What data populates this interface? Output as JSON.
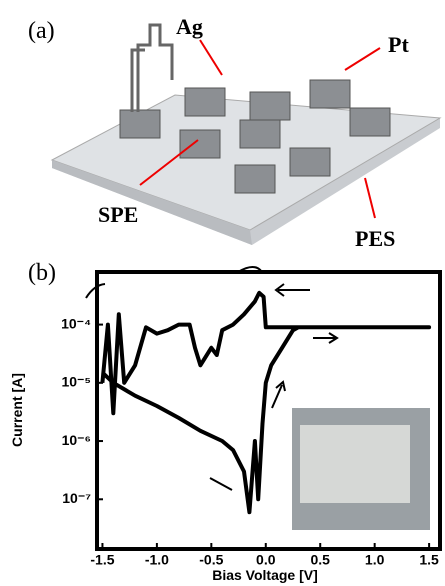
{
  "panel_a": {
    "label": "(a)",
    "annotations": [
      "Ag",
      "Pt",
      "SPE",
      "PES"
    ]
  },
  "chart_data": {
    "type": "line",
    "panel_label": "(b)",
    "x_label": "Bias Voltage [V]",
    "y_label": "Current [A]",
    "x": [
      -1.5,
      -1.4,
      -1.2,
      -1.0,
      -0.8,
      -0.6,
      -0.4,
      -0.3,
      -0.2,
      -0.15,
      -0.1,
      -0.07,
      -0.03,
      0.0,
      0.05,
      0.15,
      0.25,
      0.3,
      1.5,
      0.0,
      -0.02,
      -0.06,
      -0.1,
      -0.2,
      -0.3,
      -0.4,
      -0.45,
      -0.5,
      -0.6,
      -0.65,
      -0.7,
      -0.8,
      -0.9,
      -1.0,
      -1.1,
      -1.2,
      -1.3,
      -1.35,
      -1.4,
      -1.45,
      -1.5
    ],
    "values": [
      1.5e-05,
      1e-05,
      6e-06,
      4e-06,
      2.5e-06,
      1.5e-06,
      1e-06,
      7e-07,
      3e-07,
      6e-08,
      1e-06,
      1e-07,
      2e-06,
      1e-05,
      2e-05,
      4e-05,
      8e-05,
      9e-05,
      9e-05,
      9e-05,
      0.0003,
      0.00035,
      0.00025,
      0.00015,
      0.0001,
      8e-05,
      3e-05,
      4e-05,
      2e-05,
      4e-05,
      0.0001,
      0.0001,
      8e-05,
      7e-05,
      9e-05,
      2e-05,
      1e-05,
      0.00015,
      3e-06,
      0.0001,
      1e-05
    ],
    "color": "#000000",
    "xlim": [
      -1.55,
      1.6
    ],
    "xticks": [
      -1.5,
      {
        "value": -1,
        "label": "-1.0"
      },
      -0.5,
      {
        "value": 0,
        "label": "0.0"
      },
      0.5,
      {
        "value": 1,
        "label": "1.0"
      },
      1.5
    ],
    "ylim": [
      1.4e-08,
      0.0008
    ],
    "log_y": true,
    "yticks": [
      {
        "value": 1e-07,
        "label": "10⁻⁷"
      },
      {
        "value": 1e-06,
        "label": "10⁻⁶"
      },
      {
        "value": 1e-05,
        "label": "10⁻⁵"
      },
      {
        "value": 0.0001,
        "label": "10⁻⁴"
      }
    ]
  }
}
